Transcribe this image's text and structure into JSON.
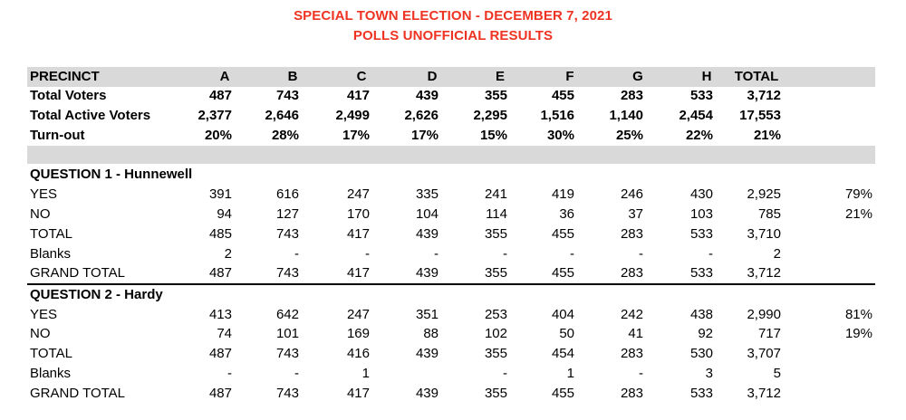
{
  "titles": {
    "line1": "SPECIAL TOWN ELECTION - DECEMBER 7, 2021",
    "line2": "POLLS UNOFFICIAL RESULTS"
  },
  "header": {
    "label": "PRECINCT",
    "cols": [
      "A",
      "B",
      "C",
      "D",
      "E",
      "F",
      "G",
      "H",
      "TOTAL"
    ]
  },
  "summary": [
    {
      "label": "Total Voters",
      "values": [
        "487",
        "743",
        "417",
        "439",
        "355",
        "455",
        "283",
        "533",
        "3,712"
      ],
      "pct": ""
    },
    {
      "label": "Total Active Voters",
      "values": [
        "2,377",
        "2,646",
        "2,499",
        "2,626",
        "2,295",
        "1,516",
        "1,140",
        "2,454",
        "17,553"
      ],
      "pct": ""
    },
    {
      "label": "Turn-out",
      "values": [
        "20%",
        "28%",
        "17%",
        "17%",
        "15%",
        "30%",
        "25%",
        "22%",
        "21%"
      ],
      "pct": ""
    }
  ],
  "q1": {
    "title": "QUESTION 1 - Hunnewell",
    "rows": [
      {
        "label": "YES",
        "values": [
          "391",
          "616",
          "247",
          "335",
          "241",
          "419",
          "246",
          "430",
          "2,925"
        ],
        "pct": "79%"
      },
      {
        "label": "NO",
        "values": [
          "94",
          "127",
          "170",
          "104",
          "114",
          "36",
          "37",
          "103",
          "785"
        ],
        "pct": "21%"
      },
      {
        "label": "TOTAL",
        "values": [
          "485",
          "743",
          "417",
          "439",
          "355",
          "455",
          "283",
          "533",
          "3,710"
        ],
        "pct": ""
      },
      {
        "label": "Blanks",
        "values": [
          "2",
          "-",
          "-",
          "-",
          "-",
          "-",
          "-",
          "-",
          "2"
        ],
        "pct": ""
      },
      {
        "label": "GRAND TOTAL",
        "values": [
          "487",
          "743",
          "417",
          "439",
          "355",
          "455",
          "283",
          "533",
          "3,712"
        ],
        "pct": ""
      }
    ]
  },
  "q2": {
    "title": "QUESTION 2 - Hardy",
    "rows": [
      {
        "label": "YES",
        "values": [
          "413",
          "642",
          "247",
          "351",
          "253",
          "404",
          "242",
          "438",
          "2,990"
        ],
        "pct": "81%"
      },
      {
        "label": "NO",
        "values": [
          "74",
          "101",
          "169",
          "88",
          "102",
          "50",
          "41",
          "92",
          "717"
        ],
        "pct": "19%"
      },
      {
        "label": "TOTAL",
        "values": [
          "487",
          "743",
          "416",
          "439",
          "355",
          "454",
          "283",
          "530",
          "3,707"
        ],
        "pct": ""
      },
      {
        "label": "Blanks",
        "values": [
          "-",
          "-",
          "1",
          "",
          "-",
          "1",
          "-",
          "3",
          "5"
        ],
        "pct": ""
      },
      {
        "label": "GRAND TOTAL",
        "values": [
          "487",
          "743",
          "417",
          "439",
          "355",
          "455",
          "283",
          "533",
          "3,712"
        ],
        "pct": ""
      }
    ]
  }
}
